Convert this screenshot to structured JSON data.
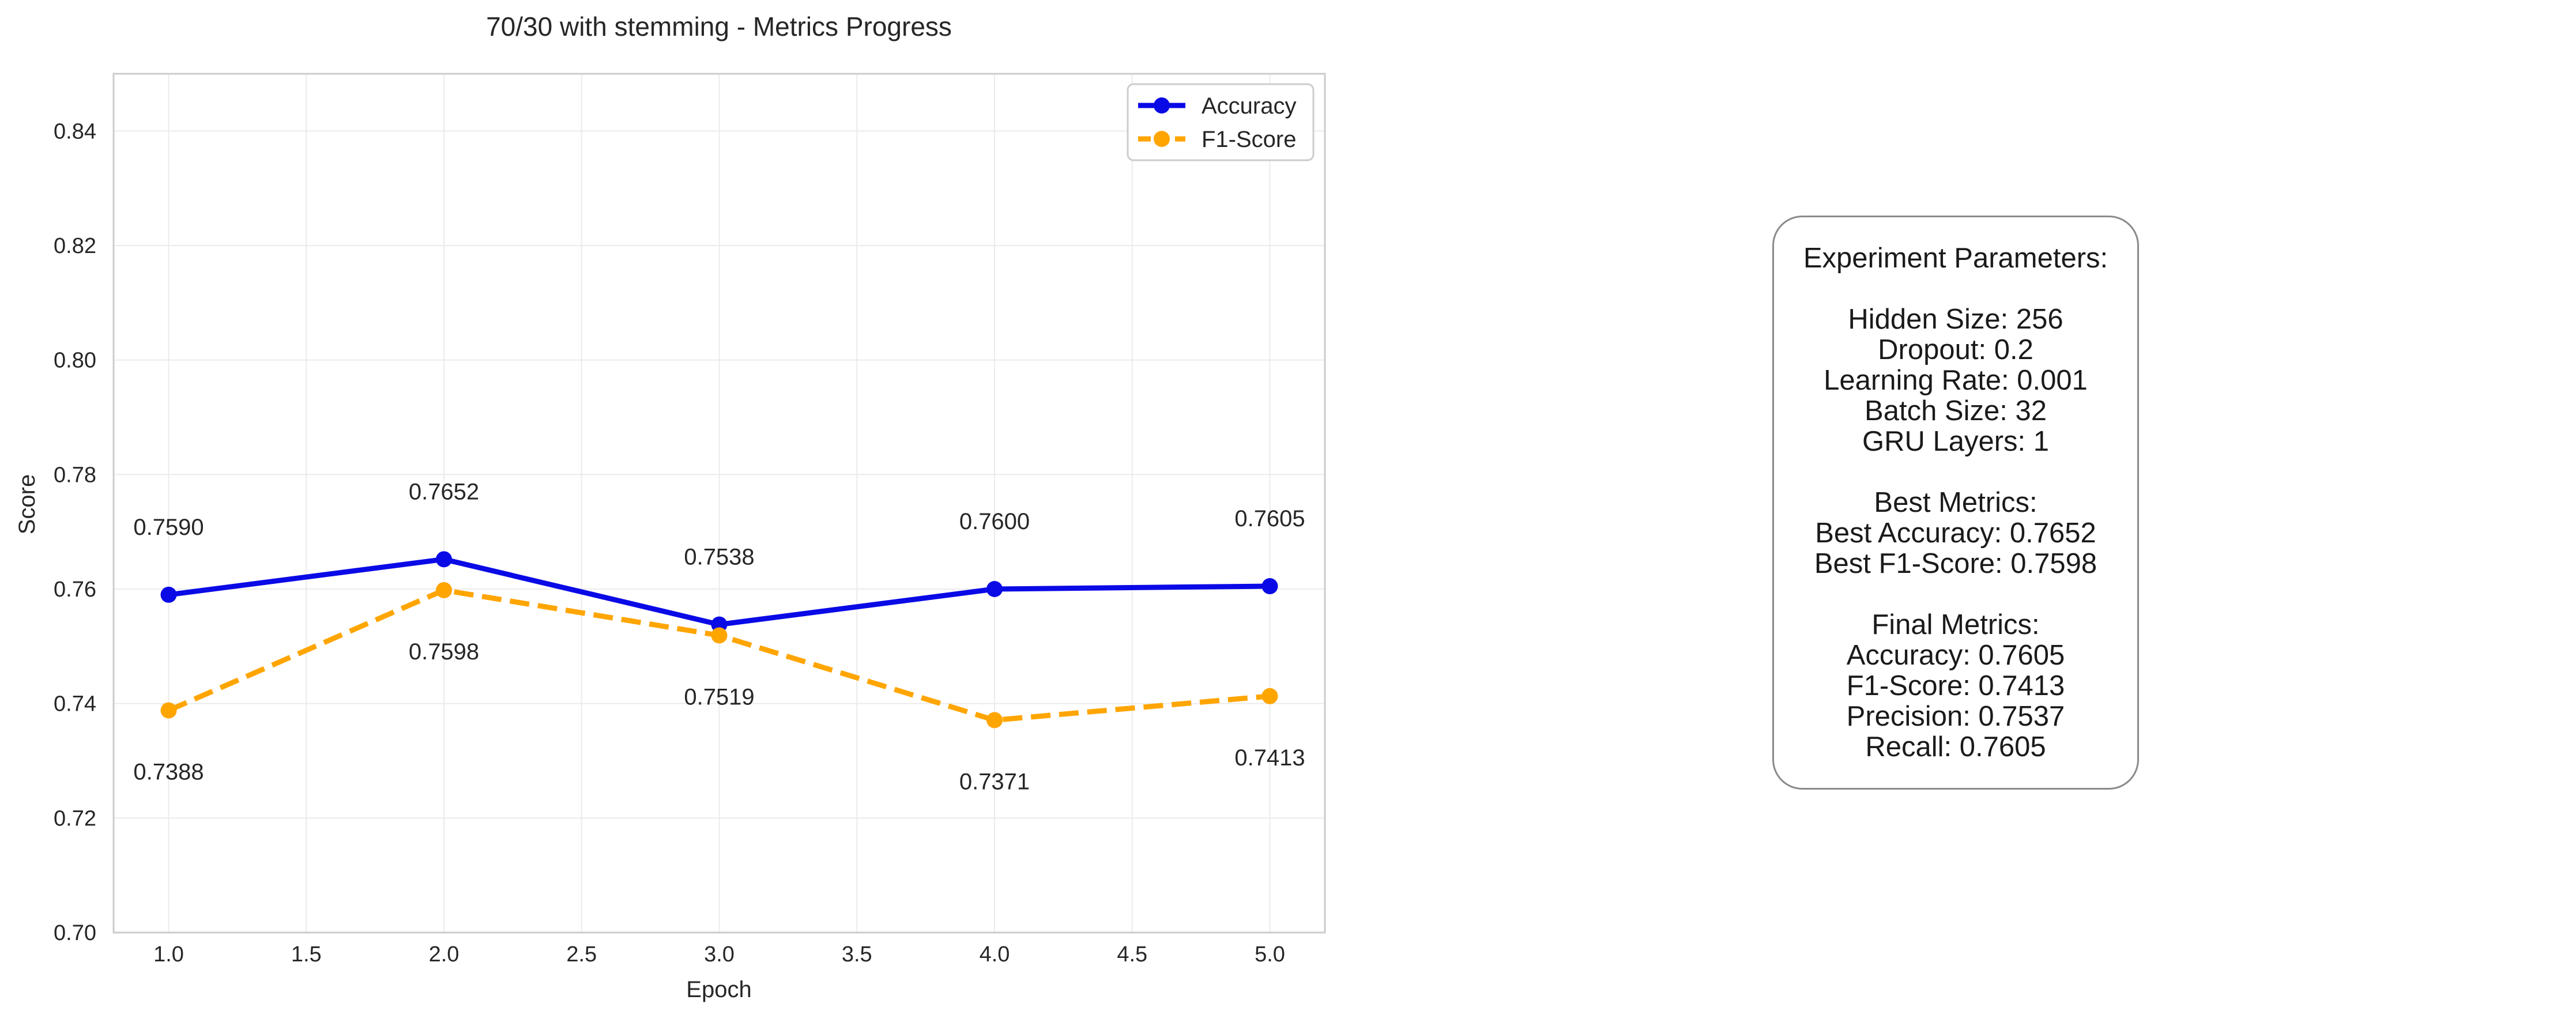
{
  "chart_data": {
    "type": "line",
    "title": "70/30 with stemming - Metrics Progress",
    "xlabel": "Epoch",
    "ylabel": "Score",
    "x": [
      1.0,
      2.0,
      3.0,
      4.0,
      5.0
    ],
    "xlim": [
      0.8,
      5.2
    ],
    "ylim": [
      0.7,
      0.85
    ],
    "xticks": [
      "1.0",
      "1.5",
      "2.0",
      "2.5",
      "3.0",
      "3.5",
      "4.0",
      "4.5",
      "5.0"
    ],
    "yticks": [
      "0.70",
      "0.72",
      "0.74",
      "0.76",
      "0.78",
      "0.80",
      "0.82",
      "0.84"
    ],
    "grid": true,
    "legend_position": "top-right",
    "series": [
      {
        "name": "Accuracy",
        "values": [
          0.759,
          0.7652,
          0.7538,
          0.76,
          0.7605
        ],
        "labels": [
          "0.7590",
          "0.7652",
          "0.7538",
          "0.7600",
          "0.7605"
        ],
        "color": "#0a0ae6",
        "style": "solid"
      },
      {
        "name": "F1-Score",
        "values": [
          0.7388,
          0.7598,
          0.7519,
          0.7371,
          0.7413
        ],
        "labels": [
          "0.7388",
          "0.7598",
          "0.7519",
          "0.7371",
          "0.7413"
        ],
        "color": "#ffa500",
        "style": "dashed"
      }
    ]
  },
  "params_box": {
    "lines": [
      "Experiment Parameters:",
      "",
      "Hidden Size: 256",
      "Dropout: 0.2",
      "Learning Rate: 0.001",
      "Batch Size: 32",
      "GRU Layers: 1",
      "",
      "Best Metrics:",
      "Best Accuracy: 0.7652",
      "Best F1-Score: 0.7598",
      "",
      "Final Metrics:",
      "Accuracy: 0.7605",
      "F1-Score: 0.7413",
      "Precision: 0.7537",
      "Recall: 0.7605"
    ]
  }
}
